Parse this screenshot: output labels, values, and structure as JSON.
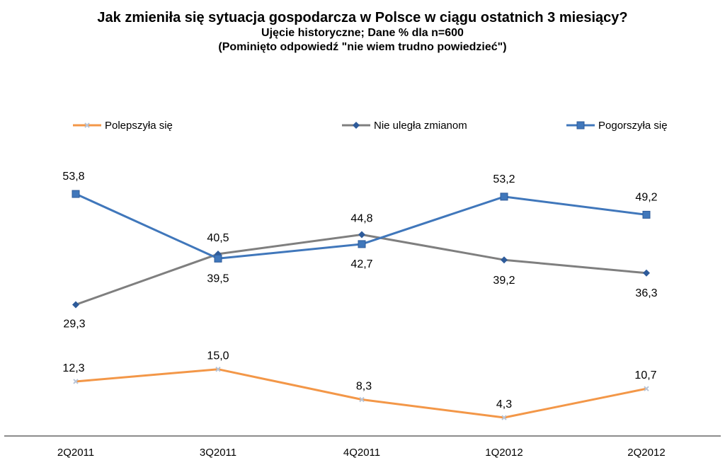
{
  "chart_data": {
    "type": "line",
    "title": "Jak zmieniła się sytuacja gospodarcza  w Polsce w ciągu ostatnich 3 miesiący?",
    "subtitle": "Ujęcie historyczne; Dane % dla n=600",
    "note": "(Pominięto odpowiedź  \"nie wiem trudno  powiedzieć\")",
    "xlabel": "",
    "ylabel": "",
    "ylim": [
      0,
      60
    ],
    "grid": false,
    "legend_position": "top",
    "categories": [
      "2Q2011",
      "3Q2011",
      "4Q2011",
      "1Q2012",
      "2Q2012"
    ],
    "series": [
      {
        "name": "Polepszyła się",
        "color": "#f39748",
        "marker": "x",
        "values": [
          12.3,
          15.0,
          8.3,
          4.3,
          10.7
        ],
        "labels": [
          "12,3",
          "15,0",
          "8,3",
          "4,3",
          "10,7"
        ],
        "label_position": "above"
      },
      {
        "name": "Nie uległa zmianom",
        "color": "#7f7f7f",
        "marker_color": "#2e5b9a",
        "marker": "diamond",
        "values": [
          29.3,
          40.5,
          44.8,
          39.2,
          36.3
        ],
        "labels": [
          "29,3",
          "40,5",
          "44,8",
          "39,2",
          "36,3"
        ],
        "label_position": "mixed"
      },
      {
        "name": "Pogorszyła się",
        "color": "#4077bb",
        "marker": "square",
        "values": [
          53.8,
          39.5,
          42.7,
          53.2,
          49.2
        ],
        "labels": [
          "53,8",
          "39,5",
          "42,7",
          "53,2",
          "49,2"
        ],
        "label_position": "mixed"
      }
    ]
  }
}
